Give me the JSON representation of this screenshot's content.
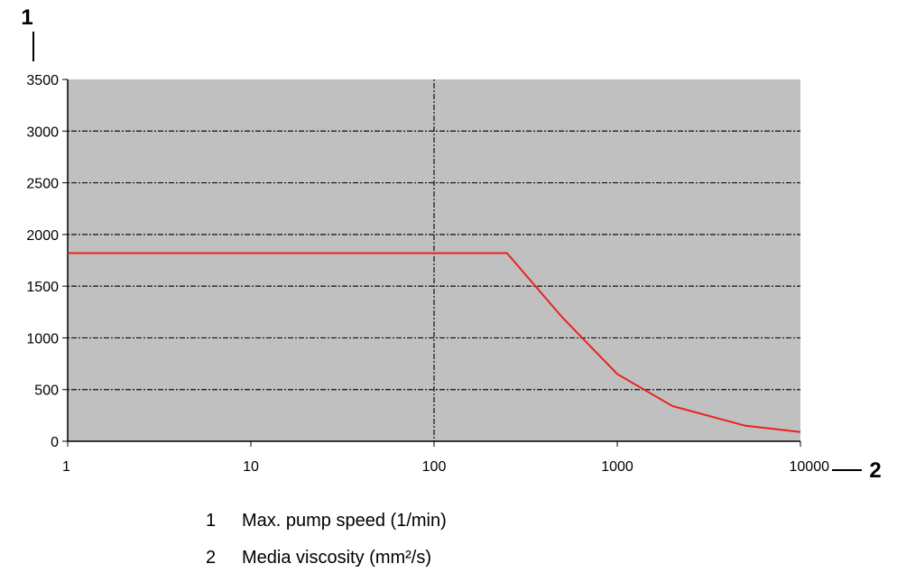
{
  "chart_data": {
    "type": "line",
    "x_scale": "log",
    "x_ticks": [
      1,
      10,
      100,
      1000,
      10000
    ],
    "y_ticks": [
      0,
      500,
      1000,
      1500,
      2000,
      2500,
      3000,
      3500
    ],
    "xlim": [
      1,
      10000
    ],
    "ylim": [
      0,
      3500
    ],
    "y_axis_marker": "1",
    "x_axis_marker": "2",
    "grid": true,
    "plot_background": "#c0c0c0",
    "line_color": "#e8231f",
    "series": [
      {
        "x": [
          1,
          250,
          500,
          1000,
          2000,
          5000,
          10000
        ],
        "y": [
          1820,
          1820,
          1200,
          650,
          340,
          150,
          90
        ]
      }
    ]
  },
  "legend": {
    "items": [
      {
        "num": "1",
        "text": "Max. pump speed (1/min)"
      },
      {
        "num": "2",
        "text": "Media viscosity (mm²/s)"
      }
    ]
  }
}
